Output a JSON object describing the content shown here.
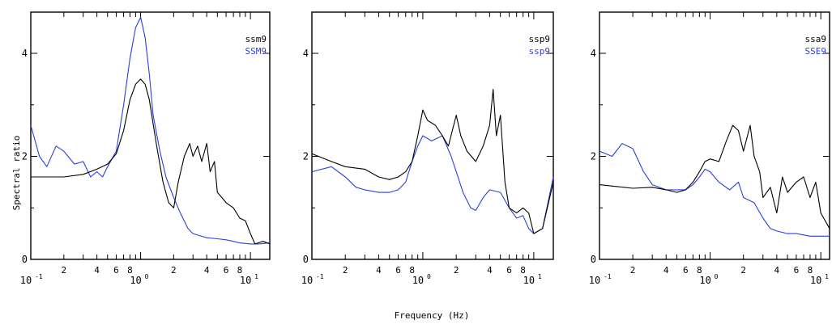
{
  "figure": {
    "ylabel": "Spectral  ratio",
    "xlabel": "Frequency (Hz)"
  },
  "colors": {
    "series_a": "#000000",
    "series_b": "#2a3fe0"
  },
  "chart_data": [
    {
      "type": "line",
      "x_scale": "log",
      "xlim": [
        0.1,
        15
      ],
      "ylim": [
        0,
        4.8
      ],
      "yticks": [
        "0",
        "2",
        "4"
      ],
      "series": [
        {
          "name": "ssm9",
          "color": "#000000",
          "x": [
            0.1,
            0.2,
            0.3,
            0.4,
            0.5,
            0.6,
            0.7,
            0.8,
            0.9,
            1.0,
            1.1,
            1.2,
            1.4,
            1.6,
            1.8,
            2.0,
            2.2,
            2.5,
            2.8,
            3.0,
            3.3,
            3.6,
            4.0,
            4.3,
            4.7,
            5.0,
            5.5,
            6.0,
            7.0,
            8.0,
            9.0,
            10.0,
            11.0,
            13.0,
            15.0
          ],
          "y": [
            1.6,
            1.6,
            1.65,
            1.75,
            1.85,
            2.05,
            2.5,
            3.1,
            3.4,
            3.5,
            3.4,
            3.1,
            2.2,
            1.5,
            1.1,
            1.0,
            1.5,
            2.0,
            2.25,
            2.0,
            2.2,
            1.9,
            2.25,
            1.7,
            1.9,
            1.3,
            1.2,
            1.1,
            1.0,
            0.8,
            0.75,
            0.5,
            0.3,
            0.35,
            0.3
          ]
        },
        {
          "name": "SSM9",
          "color": "#2a3fe0",
          "x": [
            0.1,
            0.12,
            0.14,
            0.17,
            0.2,
            0.25,
            0.3,
            0.35,
            0.4,
            0.45,
            0.5,
            0.6,
            0.7,
            0.8,
            0.9,
            1.0,
            1.1,
            1.2,
            1.3,
            1.5,
            1.7,
            2.0,
            2.3,
            2.7,
            3.0,
            4.0,
            5.0,
            6.0,
            7.0,
            8.0,
            10.0,
            12.0,
            15.0
          ],
          "y": [
            2.6,
            2.0,
            1.8,
            2.2,
            2.1,
            1.85,
            1.9,
            1.6,
            1.7,
            1.6,
            1.8,
            2.1,
            3.0,
            3.9,
            4.5,
            4.7,
            4.3,
            3.6,
            2.8,
            2.1,
            1.6,
            1.2,
            0.9,
            0.6,
            0.5,
            0.42,
            0.4,
            0.38,
            0.35,
            0.32,
            0.3,
            0.3,
            0.32
          ]
        }
      ]
    },
    {
      "type": "line",
      "x_scale": "log",
      "xlim": [
        0.1,
        15
      ],
      "ylim": [
        0,
        4.8
      ],
      "yticks": [
        "0",
        "2",
        "4"
      ],
      "series": [
        {
          "name": "ssp9",
          "color": "#000000",
          "x": [
            0.1,
            0.15,
            0.2,
            0.3,
            0.4,
            0.5,
            0.6,
            0.7,
            0.8,
            0.9,
            1.0,
            1.1,
            1.3,
            1.5,
            1.7,
            2.0,
            2.2,
            2.5,
            3.0,
            3.5,
            4.0,
            4.3,
            4.6,
            5.0,
            5.5,
            6.0,
            7.0,
            8.0,
            9.0,
            10.0,
            12.0,
            15.0
          ],
          "y": [
            2.05,
            1.9,
            1.8,
            1.75,
            1.6,
            1.55,
            1.6,
            1.7,
            1.9,
            2.4,
            2.9,
            2.7,
            2.6,
            2.4,
            2.2,
            2.8,
            2.4,
            2.1,
            1.9,
            2.2,
            2.6,
            3.3,
            2.4,
            2.8,
            1.5,
            1.0,
            0.9,
            1.0,
            0.9,
            0.5,
            0.6,
            1.5
          ]
        },
        {
          "name": "ssp9",
          "color": "#2a3fe0",
          "x": [
            0.1,
            0.15,
            0.2,
            0.25,
            0.3,
            0.4,
            0.5,
            0.6,
            0.7,
            0.8,
            0.9,
            1.0,
            1.2,
            1.5,
            1.8,
            2.0,
            2.3,
            2.7,
            3.0,
            3.5,
            4.0,
            5.0,
            6.0,
            7.0,
            8.0,
            9.0,
            10.0,
            12.0,
            15.0
          ],
          "y": [
            1.7,
            1.8,
            1.6,
            1.4,
            1.35,
            1.3,
            1.3,
            1.35,
            1.5,
            1.9,
            2.2,
            2.4,
            2.3,
            2.4,
            2.0,
            1.7,
            1.3,
            1.0,
            0.95,
            1.2,
            1.35,
            1.3,
            1.0,
            0.8,
            0.85,
            0.6,
            0.5,
            0.6,
            1.6
          ]
        }
      ]
    },
    {
      "type": "line",
      "x_scale": "log",
      "xlim": [
        0.1,
        12
      ],
      "ylim": [
        0,
        4.8
      ],
      "yticks": [
        "0",
        "2",
        "4"
      ],
      "series": [
        {
          "name": "ssa9",
          "color": "#000000",
          "x": [
            0.1,
            0.2,
            0.3,
            0.4,
            0.5,
            0.6,
            0.7,
            0.8,
            0.9,
            1.0,
            1.2,
            1.4,
            1.6,
            1.8,
            2.0,
            2.3,
            2.5,
            2.8,
            3.0,
            3.5,
            4.0,
            4.5,
            5.0,
            6.0,
            7.0,
            8.0,
            9.0,
            10.0,
            12.0
          ],
          "y": [
            1.45,
            1.38,
            1.4,
            1.35,
            1.3,
            1.35,
            1.5,
            1.7,
            1.9,
            1.95,
            1.9,
            2.3,
            2.6,
            2.5,
            2.1,
            2.6,
            2.0,
            1.7,
            1.2,
            1.4,
            0.9,
            1.6,
            1.3,
            1.5,
            1.6,
            1.2,
            1.5,
            0.9,
            0.6
          ]
        },
        {
          "name": "SSE9",
          "color": "#2a3fe0",
          "x": [
            0.1,
            0.13,
            0.16,
            0.2,
            0.25,
            0.3,
            0.4,
            0.5,
            0.6,
            0.7,
            0.8,
            0.9,
            1.0,
            1.2,
            1.5,
            1.8,
            2.0,
            2.5,
            3.0,
            3.5,
            4.0,
            5.0,
            6.0,
            8.0,
            10.0,
            12.0
          ],
          "y": [
            2.1,
            2.0,
            2.25,
            2.15,
            1.7,
            1.45,
            1.35,
            1.35,
            1.35,
            1.45,
            1.6,
            1.75,
            1.7,
            1.5,
            1.35,
            1.5,
            1.2,
            1.1,
            0.8,
            0.6,
            0.55,
            0.5,
            0.5,
            0.45,
            0.45,
            0.45
          ]
        }
      ]
    }
  ]
}
